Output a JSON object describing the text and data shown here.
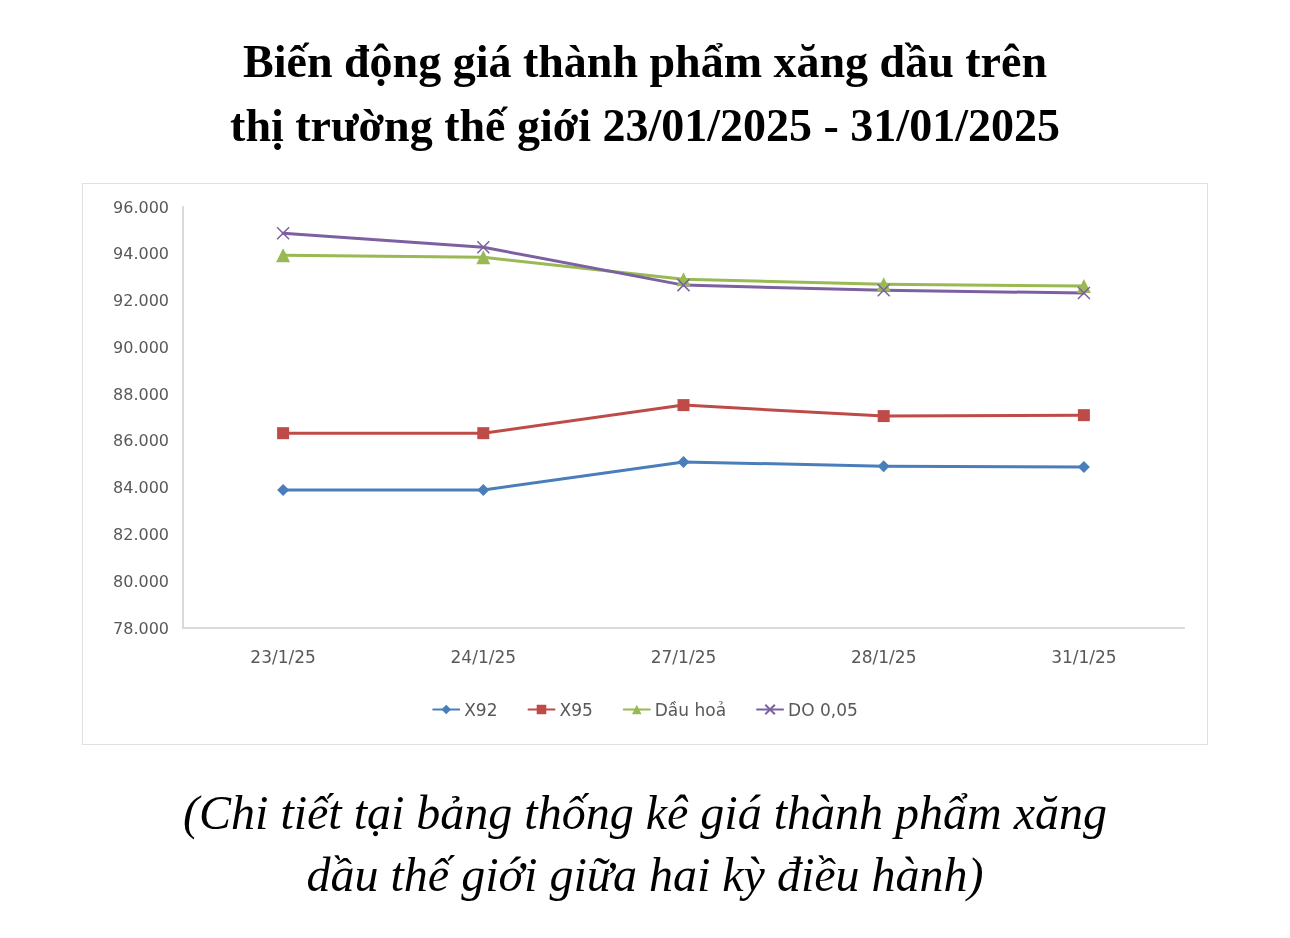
{
  "chart_data": {
    "type": "line",
    "title": "Biến động giá thành phẩm xăng dầu trên\nthị trường thế giới 23/01/2025 - 31/01/2025",
    "categories": [
      "23/1/25",
      "24/1/25",
      "27/1/25",
      "28/1/25",
      "31/1/25"
    ],
    "series": [
      {
        "name": "X92",
        "color": "#4a7ebb",
        "marker": "diamond",
        "values": [
          83900,
          83900,
          85100,
          84920,
          84880
        ]
      },
      {
        "name": "X95",
        "color": "#be4b48",
        "marker": "square",
        "values": [
          86330,
          86330,
          87530,
          87060,
          87100
        ]
      },
      {
        "name": "Dầu hoả",
        "color": "#98b954",
        "marker": "triangle",
        "values": [
          93940,
          93850,
          92910,
          92700,
          92620
        ]
      },
      {
        "name": "DO 0,05",
        "color": "#7d60a0",
        "marker": "cross",
        "values": [
          94880,
          94280,
          92660,
          92440,
          92320
        ]
      }
    ],
    "ylim": [
      78000,
      96000
    ],
    "yticks": [
      {
        "value": 78000,
        "label": "78.000"
      },
      {
        "value": 80000,
        "label": "80.000"
      },
      {
        "value": 82000,
        "label": "82.000"
      },
      {
        "value": 84000,
        "label": "84.000"
      },
      {
        "value": 86000,
        "label": "86.000"
      },
      {
        "value": 88000,
        "label": "88.000"
      },
      {
        "value": 90000,
        "label": "90.000"
      },
      {
        "value": 92000,
        "label": "92.000"
      },
      {
        "value": 94000,
        "label": "94.000"
      },
      {
        "value": 96000,
        "label": "96.000"
      }
    ],
    "grid": false,
    "legend": "bottom",
    "line_style": "solid",
    "annotations": [
      "(Chi tiết tại bảng thống kê giá thành phẩm xăng\ndầu thế giới giữa hai kỳ điều hành)"
    ]
  }
}
